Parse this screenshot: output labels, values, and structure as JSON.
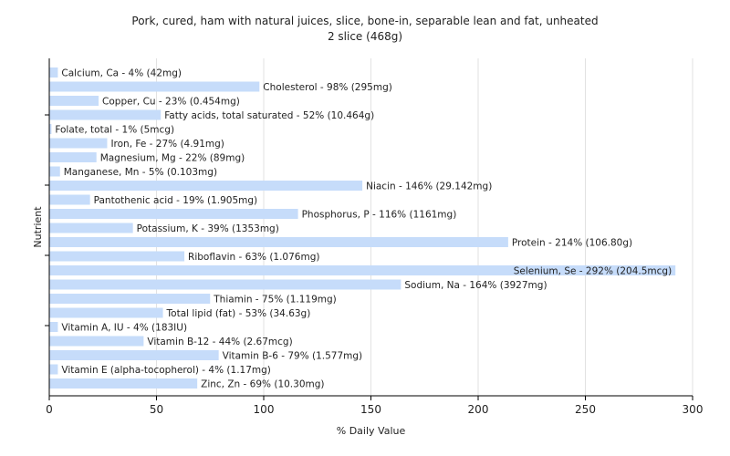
{
  "chart_data": {
    "type": "bar",
    "orientation": "horizontal",
    "title": "Pork, cured, ham with natural juices, slice, bone-in, separable lean and fat, unheated",
    "subtitle": "2 slice (468g)",
    "xlabel": "% Daily Value",
    "ylabel": "Nutrient",
    "xlim": [
      0,
      300
    ],
    "xticks": [
      0,
      50,
      100,
      150,
      200,
      250,
      300
    ],
    "grid": true,
    "bar_color": "#c6dcfa",
    "categories": [
      "Calcium, Ca",
      "Cholesterol",
      "Copper, Cu",
      "Fatty acids, total saturated",
      "Folate, total",
      "Iron, Fe",
      "Magnesium, Mg",
      "Manganese, Mn",
      "Niacin",
      "Pantothenic acid",
      "Phosphorus, P",
      "Potassium, K",
      "Protein",
      "Riboflavin",
      "Selenium, Se",
      "Sodium, Na",
      "Thiamin",
      "Total lipid (fat)",
      "Vitamin A, IU",
      "Vitamin B-12",
      "Vitamin B-6",
      "Vitamin E (alpha-tocopherol)",
      "Zinc, Zn"
    ],
    "values": [
      4,
      98,
      23,
      52,
      1,
      27,
      22,
      5,
      146,
      19,
      116,
      39,
      214,
      63,
      292,
      164,
      75,
      53,
      4,
      44,
      79,
      4,
      69
    ],
    "labels": [
      "Calcium, Ca - 4% (42mg)",
      "Cholesterol - 98% (295mg)",
      "Copper, Cu - 23% (0.454mg)",
      "Fatty acids, total saturated - 52% (10.464g)",
      "Folate, total - 1% (5mcg)",
      "Iron, Fe - 27% (4.91mg)",
      "Magnesium, Mg - 22% (89mg)",
      "Manganese, Mn - 5% (0.103mg)",
      "Niacin - 146% (29.142mg)",
      "Pantothenic acid - 19% (1.905mg)",
      "Phosphorus, P - 116% (1161mg)",
      "Potassium, K - 39% (1353mg)",
      "Protein - 214% (106.80g)",
      "Riboflavin - 63% (1.076mg)",
      "Selenium, Se - 292% (204.5mcg)",
      "Sodium, Na - 164% (3927mg)",
      "Thiamin - 75% (1.119mg)",
      "Total lipid (fat) - 53% (34.63g)",
      "Vitamin A, IU - 4% (183IU)",
      "Vitamin B-12 - 44% (2.67mcg)",
      "Vitamin B-6 - 79% (1.577mg)",
      "Vitamin E (alpha-tocopherol) - 4% (1.17mg)",
      "Zinc, Zn - 69% (10.30mg)"
    ]
  }
}
